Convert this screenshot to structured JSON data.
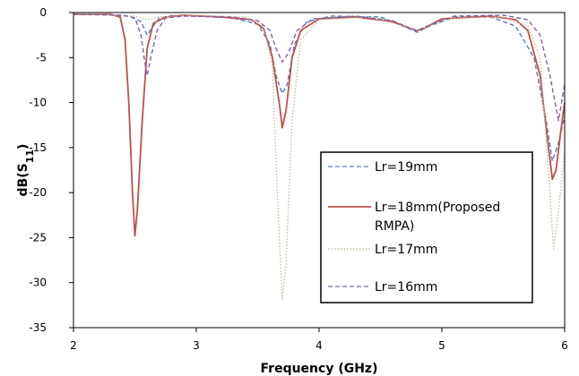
{
  "chart_data": {
    "type": "line",
    "title": "",
    "xlabel": "Frequency (GHz)",
    "ylabel": "dB(S11)",
    "ylabel_main": "dB(S",
    "ylabel_sub": "11",
    "ylabel_close": ")",
    "xlim": [
      2,
      6
    ],
    "ylim": [
      -35,
      0
    ],
    "x_ticks": [
      2,
      3,
      4,
      5,
      6
    ],
    "y_ticks": [
      0,
      -5,
      -10,
      -15,
      -20,
      -25,
      -30,
      -35
    ],
    "grid": false,
    "legend_position": "right",
    "series": [
      {
        "name": "Lr=19mm",
        "color": "#4f81bd",
        "dash": "dashed",
        "points": [
          [
            2.0,
            -0.2
          ],
          [
            2.3,
            -0.25
          ],
          [
            2.45,
            -0.4
          ],
          [
            2.55,
            -1.0
          ],
          [
            2.6,
            -2.5
          ],
          [
            2.65,
            -1.5
          ],
          [
            2.7,
            -0.6
          ],
          [
            2.8,
            -0.35
          ],
          [
            3.0,
            -0.4
          ],
          [
            3.3,
            -0.6
          ],
          [
            3.5,
            -1.3
          ],
          [
            3.6,
            -3.5
          ],
          [
            3.65,
            -7.0
          ],
          [
            3.7,
            -9.0
          ],
          [
            3.74,
            -8.0
          ],
          [
            3.8,
            -3.5
          ],
          [
            3.9,
            -1.0
          ],
          [
            4.1,
            -0.4
          ],
          [
            4.5,
            -0.5
          ],
          [
            4.7,
            -1.6
          ],
          [
            4.8,
            -2.2
          ],
          [
            4.9,
            -1.5
          ],
          [
            5.1,
            -0.5
          ],
          [
            5.4,
            -0.5
          ],
          [
            5.6,
            -1.5
          ],
          [
            5.75,
            -5.0
          ],
          [
            5.85,
            -12.0
          ],
          [
            5.9,
            -16.5
          ],
          [
            5.95,
            -14.5
          ],
          [
            6.0,
            -11.5
          ]
        ]
      },
      {
        "name": "Lr=18mm(Proposed RMPA)",
        "color": "#c0504d",
        "dash": "solid",
        "points": [
          [
            2.0,
            -0.2
          ],
          [
            2.3,
            -0.2
          ],
          [
            2.38,
            -0.5
          ],
          [
            2.42,
            -3.0
          ],
          [
            2.45,
            -10.0
          ],
          [
            2.48,
            -20.0
          ],
          [
            2.5,
            -24.8
          ],
          [
            2.52,
            -22.0
          ],
          [
            2.56,
            -12.0
          ],
          [
            2.6,
            -4.0
          ],
          [
            2.65,
            -1.2
          ],
          [
            2.75,
            -0.5
          ],
          [
            2.9,
            -0.3
          ],
          [
            3.2,
            -0.5
          ],
          [
            3.45,
            -0.8
          ],
          [
            3.55,
            -1.8
          ],
          [
            3.62,
            -5.0
          ],
          [
            3.68,
            -10.5
          ],
          [
            3.7,
            -12.8
          ],
          [
            3.73,
            -11.0
          ],
          [
            3.78,
            -5.0
          ],
          [
            3.85,
            -2.0
          ],
          [
            4.0,
            -0.7
          ],
          [
            4.3,
            -0.5
          ],
          [
            4.6,
            -1.0
          ],
          [
            4.75,
            -1.8
          ],
          [
            4.8,
            -2.0
          ],
          [
            4.85,
            -1.8
          ],
          [
            5.0,
            -0.7
          ],
          [
            5.4,
            -0.4
          ],
          [
            5.6,
            -0.8
          ],
          [
            5.7,
            -2.0
          ],
          [
            5.8,
            -7.0
          ],
          [
            5.86,
            -14.0
          ],
          [
            5.9,
            -18.5
          ],
          [
            5.93,
            -17.5
          ],
          [
            5.97,
            -13.0
          ],
          [
            6.0,
            -10.0
          ]
        ]
      },
      {
        "name": "Lr=17mm",
        "color": "#c4bd97",
        "dash": "dotted",
        "points": [
          [
            2.0,
            -0.1
          ],
          [
            2.5,
            -0.4
          ],
          [
            2.6,
            -0.8
          ],
          [
            2.7,
            -0.5
          ],
          [
            3.0,
            -0.3
          ],
          [
            3.4,
            -0.5
          ],
          [
            3.55,
            -1.5
          ],
          [
            3.62,
            -6.0
          ],
          [
            3.66,
            -20.0
          ],
          [
            3.7,
            -31.8
          ],
          [
            3.73,
            -28.0
          ],
          [
            3.78,
            -12.0
          ],
          [
            3.85,
            -3.0
          ],
          [
            4.0,
            -0.8
          ],
          [
            4.4,
            -0.5
          ],
          [
            4.7,
            -1.5
          ],
          [
            4.8,
            -2.0
          ],
          [
            4.9,
            -1.5
          ],
          [
            5.1,
            -0.6
          ],
          [
            5.5,
            -0.5
          ],
          [
            5.7,
            -1.5
          ],
          [
            5.8,
            -5.0
          ],
          [
            5.87,
            -18.0
          ],
          [
            5.91,
            -26.3
          ],
          [
            5.95,
            -22.0
          ],
          [
            6.0,
            -15.5
          ]
        ]
      },
      {
        "name": "Lr=16mm",
        "color": "#8064a2",
        "dash": "dashed",
        "points": [
          [
            2.0,
            -0.2
          ],
          [
            2.4,
            -0.3
          ],
          [
            2.5,
            -0.6
          ],
          [
            2.55,
            -2.5
          ],
          [
            2.58,
            -5.5
          ],
          [
            2.6,
            -7.0
          ],
          [
            2.63,
            -5.0
          ],
          [
            2.68,
            -2.0
          ],
          [
            2.75,
            -0.6
          ],
          [
            2.9,
            -0.4
          ],
          [
            3.3,
            -0.5
          ],
          [
            3.5,
            -0.9
          ],
          [
            3.6,
            -2.0
          ],
          [
            3.65,
            -4.0
          ],
          [
            3.7,
            -5.5
          ],
          [
            3.75,
            -4.5
          ],
          [
            3.82,
            -2.0
          ],
          [
            3.95,
            -0.7
          ],
          [
            4.3,
            -0.4
          ],
          [
            4.6,
            -0.9
          ],
          [
            4.75,
            -1.8
          ],
          [
            4.8,
            -2.0
          ],
          [
            4.88,
            -1.5
          ],
          [
            5.1,
            -0.4
          ],
          [
            5.5,
            -0.3
          ],
          [
            5.7,
            -0.8
          ],
          [
            5.8,
            -2.5
          ],
          [
            5.88,
            -7.0
          ],
          [
            5.95,
            -12.0
          ],
          [
            6.0,
            -8.0
          ]
        ]
      }
    ]
  }
}
